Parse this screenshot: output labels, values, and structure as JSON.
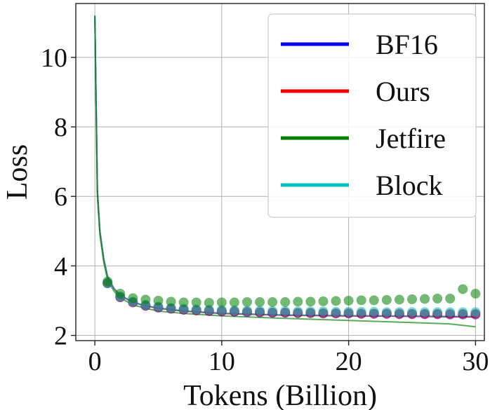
{
  "chart_data": {
    "type": "line",
    "title": "",
    "xlabel": "Tokens (Billion)",
    "ylabel": "Loss",
    "xlim": [
      -1.5,
      30.7
    ],
    "ylim": [
      1.85,
      11.55
    ],
    "xticks": [
      0,
      10,
      20,
      30
    ],
    "yticks": [
      2,
      4,
      6,
      8,
      10
    ],
    "grid": true,
    "legend_position": "top-right",
    "series": [
      {
        "name": "BF16",
        "color": "#0000ee",
        "line": [
          [
            0,
            11.2
          ],
          [
            0.2,
            6.2
          ],
          [
            0.4,
            5.0
          ],
          [
            0.7,
            4.2
          ],
          [
            1,
            3.7
          ],
          [
            1.5,
            3.35
          ],
          [
            2,
            3.15
          ],
          [
            3,
            2.95
          ],
          [
            4,
            2.85
          ],
          [
            5,
            2.78
          ],
          [
            7,
            2.7
          ],
          [
            10,
            2.63
          ],
          [
            15,
            2.58
          ],
          [
            20,
            2.56
          ],
          [
            25,
            2.55
          ],
          [
            30,
            2.53
          ]
        ],
        "points": {
          "x": [
            1,
            2,
            3,
            4,
            5,
            6,
            7,
            8,
            9,
            10,
            11,
            12,
            13,
            14,
            15,
            16,
            17,
            18,
            19,
            20,
            21,
            22,
            23,
            24,
            25,
            26,
            27,
            28,
            29,
            30
          ],
          "y": [
            3.5,
            3.1,
            2.95,
            2.85,
            2.8,
            2.77,
            2.74,
            2.72,
            2.7,
            2.69,
            2.68,
            2.67,
            2.66,
            2.65,
            2.65,
            2.64,
            2.64,
            2.63,
            2.63,
            2.63,
            2.62,
            2.62,
            2.62,
            2.61,
            2.61,
            2.61,
            2.61,
            2.6,
            2.6,
            2.6
          ]
        }
      },
      {
        "name": "Ours",
        "color": "#ee0000",
        "line": [
          [
            0,
            11.2
          ],
          [
            0.2,
            6.2
          ],
          [
            0.4,
            5.0
          ],
          [
            0.7,
            4.2
          ],
          [
            1,
            3.7
          ],
          [
            1.5,
            3.35
          ],
          [
            2,
            3.15
          ],
          [
            3,
            2.95
          ],
          [
            4,
            2.85
          ],
          [
            5,
            2.78
          ],
          [
            7,
            2.7
          ],
          [
            10,
            2.63
          ],
          [
            15,
            2.58
          ],
          [
            20,
            2.56
          ],
          [
            25,
            2.55
          ],
          [
            30,
            2.53
          ]
        ],
        "points": {
          "x": [
            1,
            2,
            3,
            4,
            5,
            6,
            7,
            8,
            9,
            10,
            11,
            12,
            13,
            14,
            15,
            16,
            17,
            18,
            19,
            20,
            21,
            22,
            23,
            24,
            25,
            26,
            27,
            28,
            29,
            30
          ],
          "y": [
            3.5,
            3.1,
            2.95,
            2.86,
            2.81,
            2.77,
            2.74,
            2.72,
            2.71,
            2.7,
            2.69,
            2.68,
            2.67,
            2.66,
            2.66,
            2.65,
            2.65,
            2.64,
            2.64,
            2.64,
            2.63,
            2.63,
            2.63,
            2.63,
            2.62,
            2.62,
            2.62,
            2.62,
            2.62,
            2.62
          ]
        }
      },
      {
        "name": "Jetfire",
        "color": "#008000",
        "line": [
          [
            0,
            11.2
          ],
          [
            0.2,
            6.0
          ],
          [
            0.4,
            4.9
          ],
          [
            0.7,
            4.1
          ],
          [
            1,
            3.6
          ],
          [
            1.5,
            3.28
          ],
          [
            2,
            3.08
          ],
          [
            3,
            2.88
          ],
          [
            4,
            2.78
          ],
          [
            5,
            2.7
          ],
          [
            7,
            2.63
          ],
          [
            10,
            2.56
          ],
          [
            15,
            2.49
          ],
          [
            20,
            2.43
          ],
          [
            25,
            2.37
          ],
          [
            28,
            2.33
          ],
          [
            30,
            2.25
          ]
        ],
        "points": {
          "x": [
            1,
            2,
            3,
            4,
            5,
            6,
            7,
            8,
            9,
            10,
            11,
            12,
            13,
            14,
            15,
            16,
            17,
            18,
            19,
            20,
            21,
            22,
            23,
            24,
            25,
            26,
            27,
            28,
            29,
            30
          ],
          "y": [
            3.55,
            3.2,
            3.07,
            3.03,
            3.0,
            2.97,
            2.95,
            2.95,
            2.94,
            2.95,
            2.95,
            2.96,
            2.96,
            2.96,
            2.96,
            2.97,
            2.97,
            2.98,
            2.99,
            3.0,
            3.01,
            3.01,
            3.02,
            3.03,
            3.04,
            3.05,
            3.06,
            3.06,
            3.33,
            3.2
          ]
        }
      },
      {
        "name": "Block",
        "color": "#00bfbf",
        "line": [
          [
            0,
            11.2
          ],
          [
            0.2,
            6.2
          ],
          [
            0.4,
            5.0
          ],
          [
            0.7,
            4.2
          ],
          [
            1,
            3.7
          ],
          [
            1.5,
            3.36
          ],
          [
            2,
            3.16
          ],
          [
            3,
            2.96
          ],
          [
            4,
            2.86
          ],
          [
            5,
            2.79
          ],
          [
            7,
            2.71
          ],
          [
            10,
            2.64
          ],
          [
            15,
            2.59
          ],
          [
            20,
            2.57
          ],
          [
            25,
            2.56
          ],
          [
            30,
            2.55
          ]
        ],
        "points": {
          "x": [
            1,
            2,
            3,
            4,
            5,
            6,
            7,
            8,
            9,
            10,
            11,
            12,
            13,
            14,
            15,
            16,
            17,
            18,
            19,
            20,
            21,
            22,
            23,
            24,
            25,
            26,
            27,
            28,
            29,
            30
          ],
          "y": [
            3.5,
            3.12,
            2.97,
            2.88,
            2.83,
            2.79,
            2.77,
            2.75,
            2.74,
            2.73,
            2.72,
            2.71,
            2.71,
            2.7,
            2.7,
            2.69,
            2.69,
            2.69,
            2.68,
            2.68,
            2.68,
            2.68,
            2.67,
            2.67,
            2.67,
            2.67,
            2.67,
            2.67,
            2.67,
            2.67
          ]
        }
      }
    ]
  }
}
